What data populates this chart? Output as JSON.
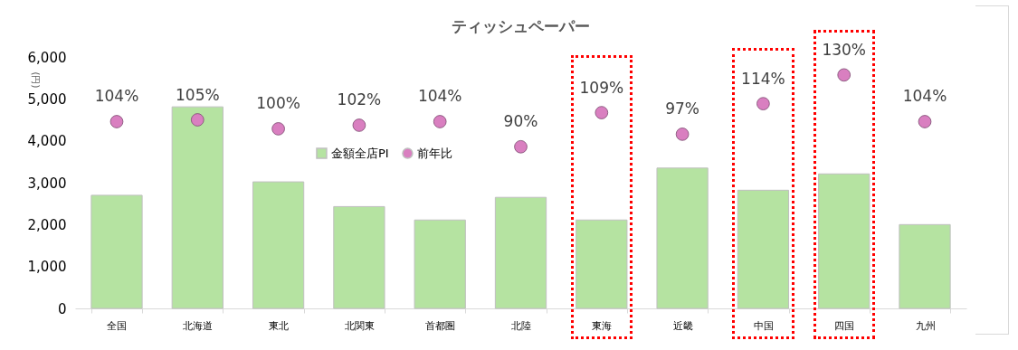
{
  "chart_data": {
    "type": "bar",
    "title": "ティッシュペーパー",
    "ylabel": "(円)",
    "categories": [
      "全国",
      "北海道",
      "東北",
      "北関東",
      "首都圏",
      "北陸",
      "東海",
      "近畿",
      "中国",
      "四国",
      "九州"
    ],
    "series": [
      {
        "name": "金額全店PI",
        "color": "#b5e3a1",
        "values": [
          2700,
          4810,
          3020,
          2430,
          2110,
          2650,
          2110,
          3350,
          2820,
          3210,
          2000
        ]
      },
      {
        "name": "前年比",
        "type": "scatter",
        "axis": "y2",
        "color": "#d97fc0",
        "values": [
          104,
          105,
          100,
          102,
          104,
          90,
          109,
          97,
          114,
          130,
          104
        ],
        "value_labels": [
          "104%",
          "105%",
          "100%",
          "102%",
          "104%",
          "90%",
          "109%",
          "97%",
          "114%",
          "130%",
          "104%"
        ]
      }
    ],
    "ylim": [
      0,
      6000
    ],
    "yticks": [
      0,
      {
        "value": 1000,
        "label": "1,000"
      },
      {
        "value": 2000,
        "label": "2,000"
      },
      {
        "value": 3000,
        "label": "3,000"
      },
      {
        "value": 4000,
        "label": "4,000"
      },
      {
        "value": 5000,
        "label": "5,000"
      },
      {
        "value": 6000,
        "label": "6,000"
      }
    ],
    "grid": false,
    "legend": "top",
    "marker": "circle"
  }
}
